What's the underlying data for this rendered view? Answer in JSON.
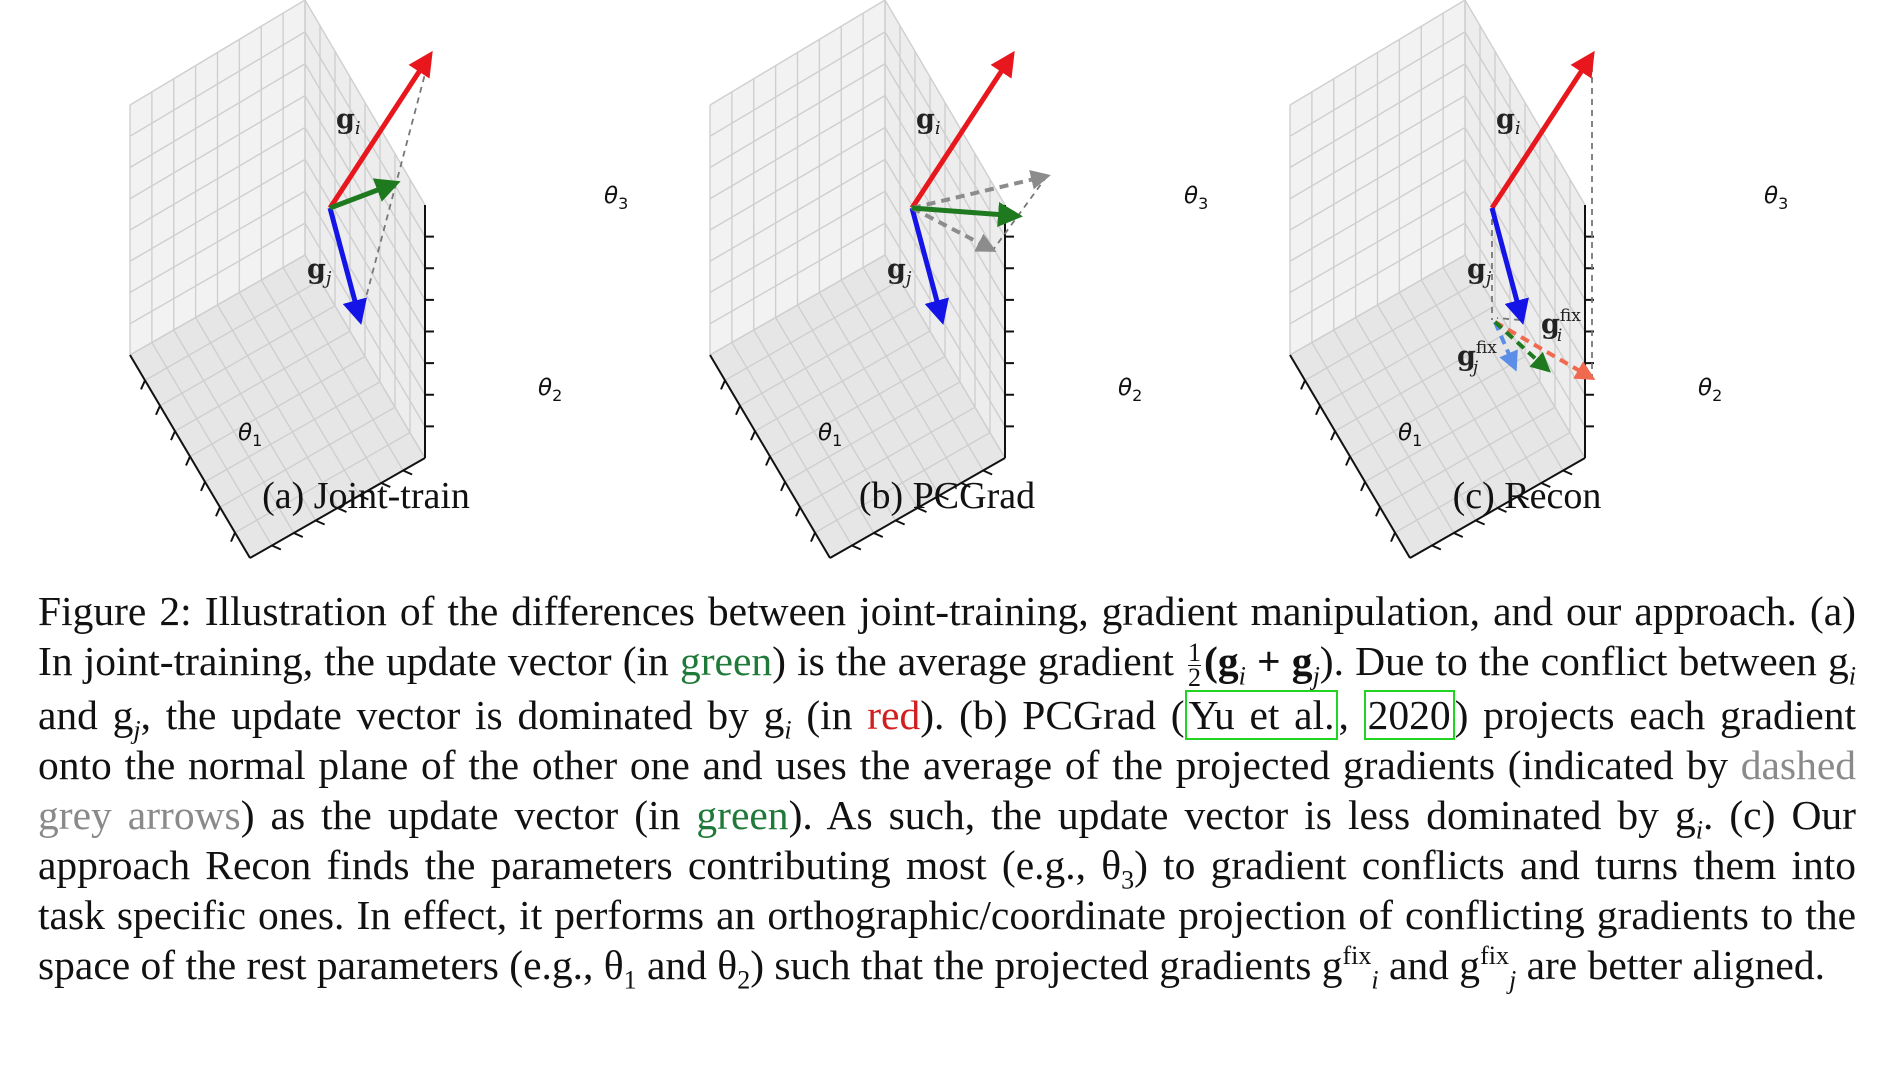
{
  "figure": {
    "axis_labels": {
      "theta1": "θ1",
      "theta2": "θ2",
      "theta3": "θ3"
    },
    "vector_labels": {
      "gi": "g",
      "gi_sub": "i",
      "gj": "g",
      "gj_sub": "j",
      "fix": "fix"
    },
    "colors": {
      "red": "#e8171e",
      "blue": "#1414e6",
      "green": "#1f7a1f",
      "grey": "#8c8c8c",
      "light_red": "#ef6a4f",
      "light_blue": "#5b8ee6",
      "pane": "#ebebeb",
      "grid": "#d2d2d2"
    },
    "panels": [
      {
        "id": "a",
        "caption": "(a) Joint-train"
      },
      {
        "id": "b",
        "caption": "(b) PCGrad"
      },
      {
        "id": "c",
        "caption": "(c) Recon"
      }
    ]
  },
  "caption": {
    "fig_label": "Figure 2:",
    "t1": "Illustration of the differences between joint-training, gradient manipulation, and our approach. (a) In joint-training, the update vector (in ",
    "green1": "green",
    "t2": ") is the average gradient ",
    "half_num": "1",
    "half_den": "2",
    "t3": "(g",
    "t3_sub_i": "i",
    "t3_plus": " + g",
    "t3_sub_j": "j",
    "t4": "). Due to the conflict between g",
    "t4_sub_i": "i",
    "t4_and": " and g",
    "t4_sub_j": "j",
    "t5": ", the update vector is dominated by g",
    "t5_sub_i": "i",
    "t5_in": " (in ",
    "red1": "red",
    "t6": "). (b) PCGrad (",
    "cite1": "Yu et al.",
    "cite_sep": ", ",
    "cite2": "2020",
    "t7": ") projects each gradient onto the normal plane of the other one and uses the average of the projected gradients (indicated by ",
    "grey1": "dashed grey arrows",
    "t8": ") as the update vector (in ",
    "green2": "green",
    "t9": "). As such, the update vector is less dominated by g",
    "t9_sub_i": "i",
    "t10": ". (c) Our approach Recon finds the parameters contributing most (e.g., θ",
    "t10_sub": "3",
    "t11": ") to gradient conflicts and turns them into task specific ones. In effect, it performs an orthographic/coordinate projection of conflicting gradients to the space of the rest parameters (e.g., θ",
    "t11_sub": "1",
    "t11_and": " and θ",
    "t11_sub2": "2",
    "t12": ") such that the projected gradients g",
    "t12_sup": "fix",
    "t12_sub": "i",
    "t12_and": " and g",
    "t12_sup2": "fix",
    "t12_sub2": "j",
    "t13": " are better aligned."
  }
}
